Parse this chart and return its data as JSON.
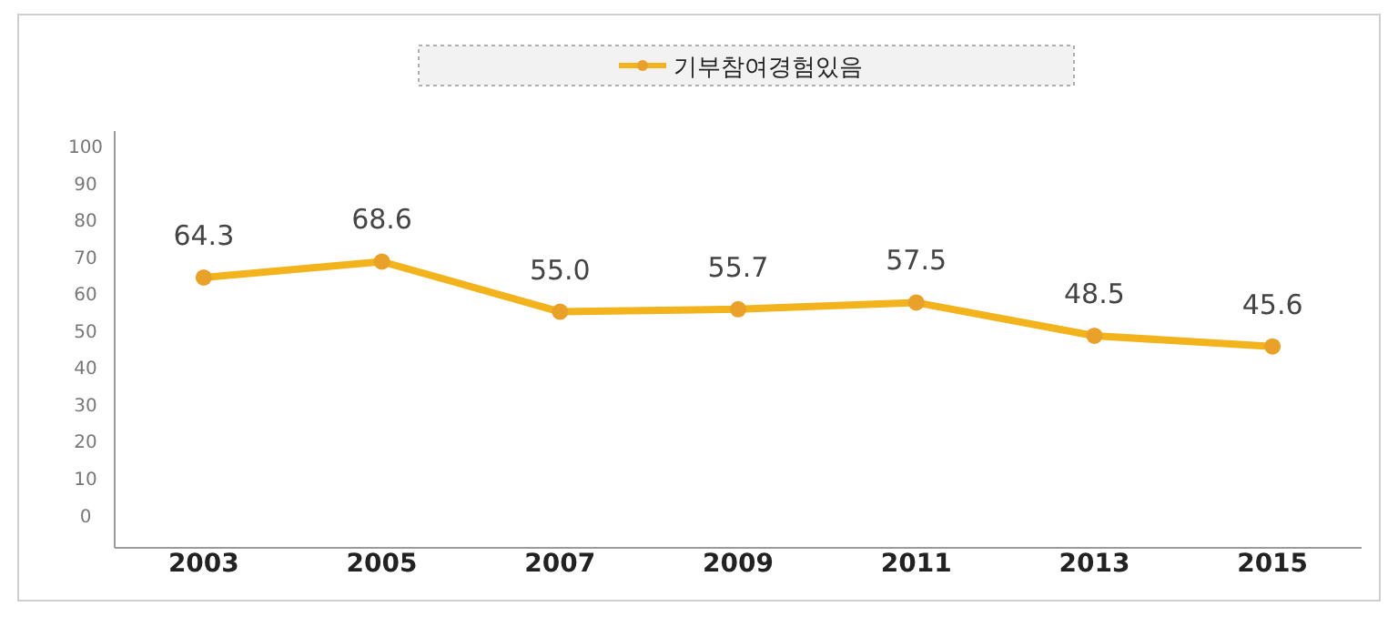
{
  "chart_data": {
    "type": "line",
    "categories": [
      "2003",
      "2005",
      "2007",
      "2009",
      "2011",
      "2013",
      "2015"
    ],
    "series": [
      {
        "name": "기부참여경험있음",
        "color": "#f2b31c",
        "values": [
          64.3,
          68.6,
          55.0,
          55.7,
          57.5,
          48.5,
          45.6
        ],
        "value_labels": [
          "64.3",
          "68.6",
          "55.0",
          "55.7",
          "57.5",
          "48.5",
          "45.6"
        ]
      }
    ],
    "ylim": [
      -9,
      104
    ],
    "yticks": [
      0,
      10,
      20,
      30,
      40,
      50,
      60,
      70,
      80,
      90,
      100
    ],
    "marker": "circle",
    "legend": "top",
    "grid": false
  }
}
